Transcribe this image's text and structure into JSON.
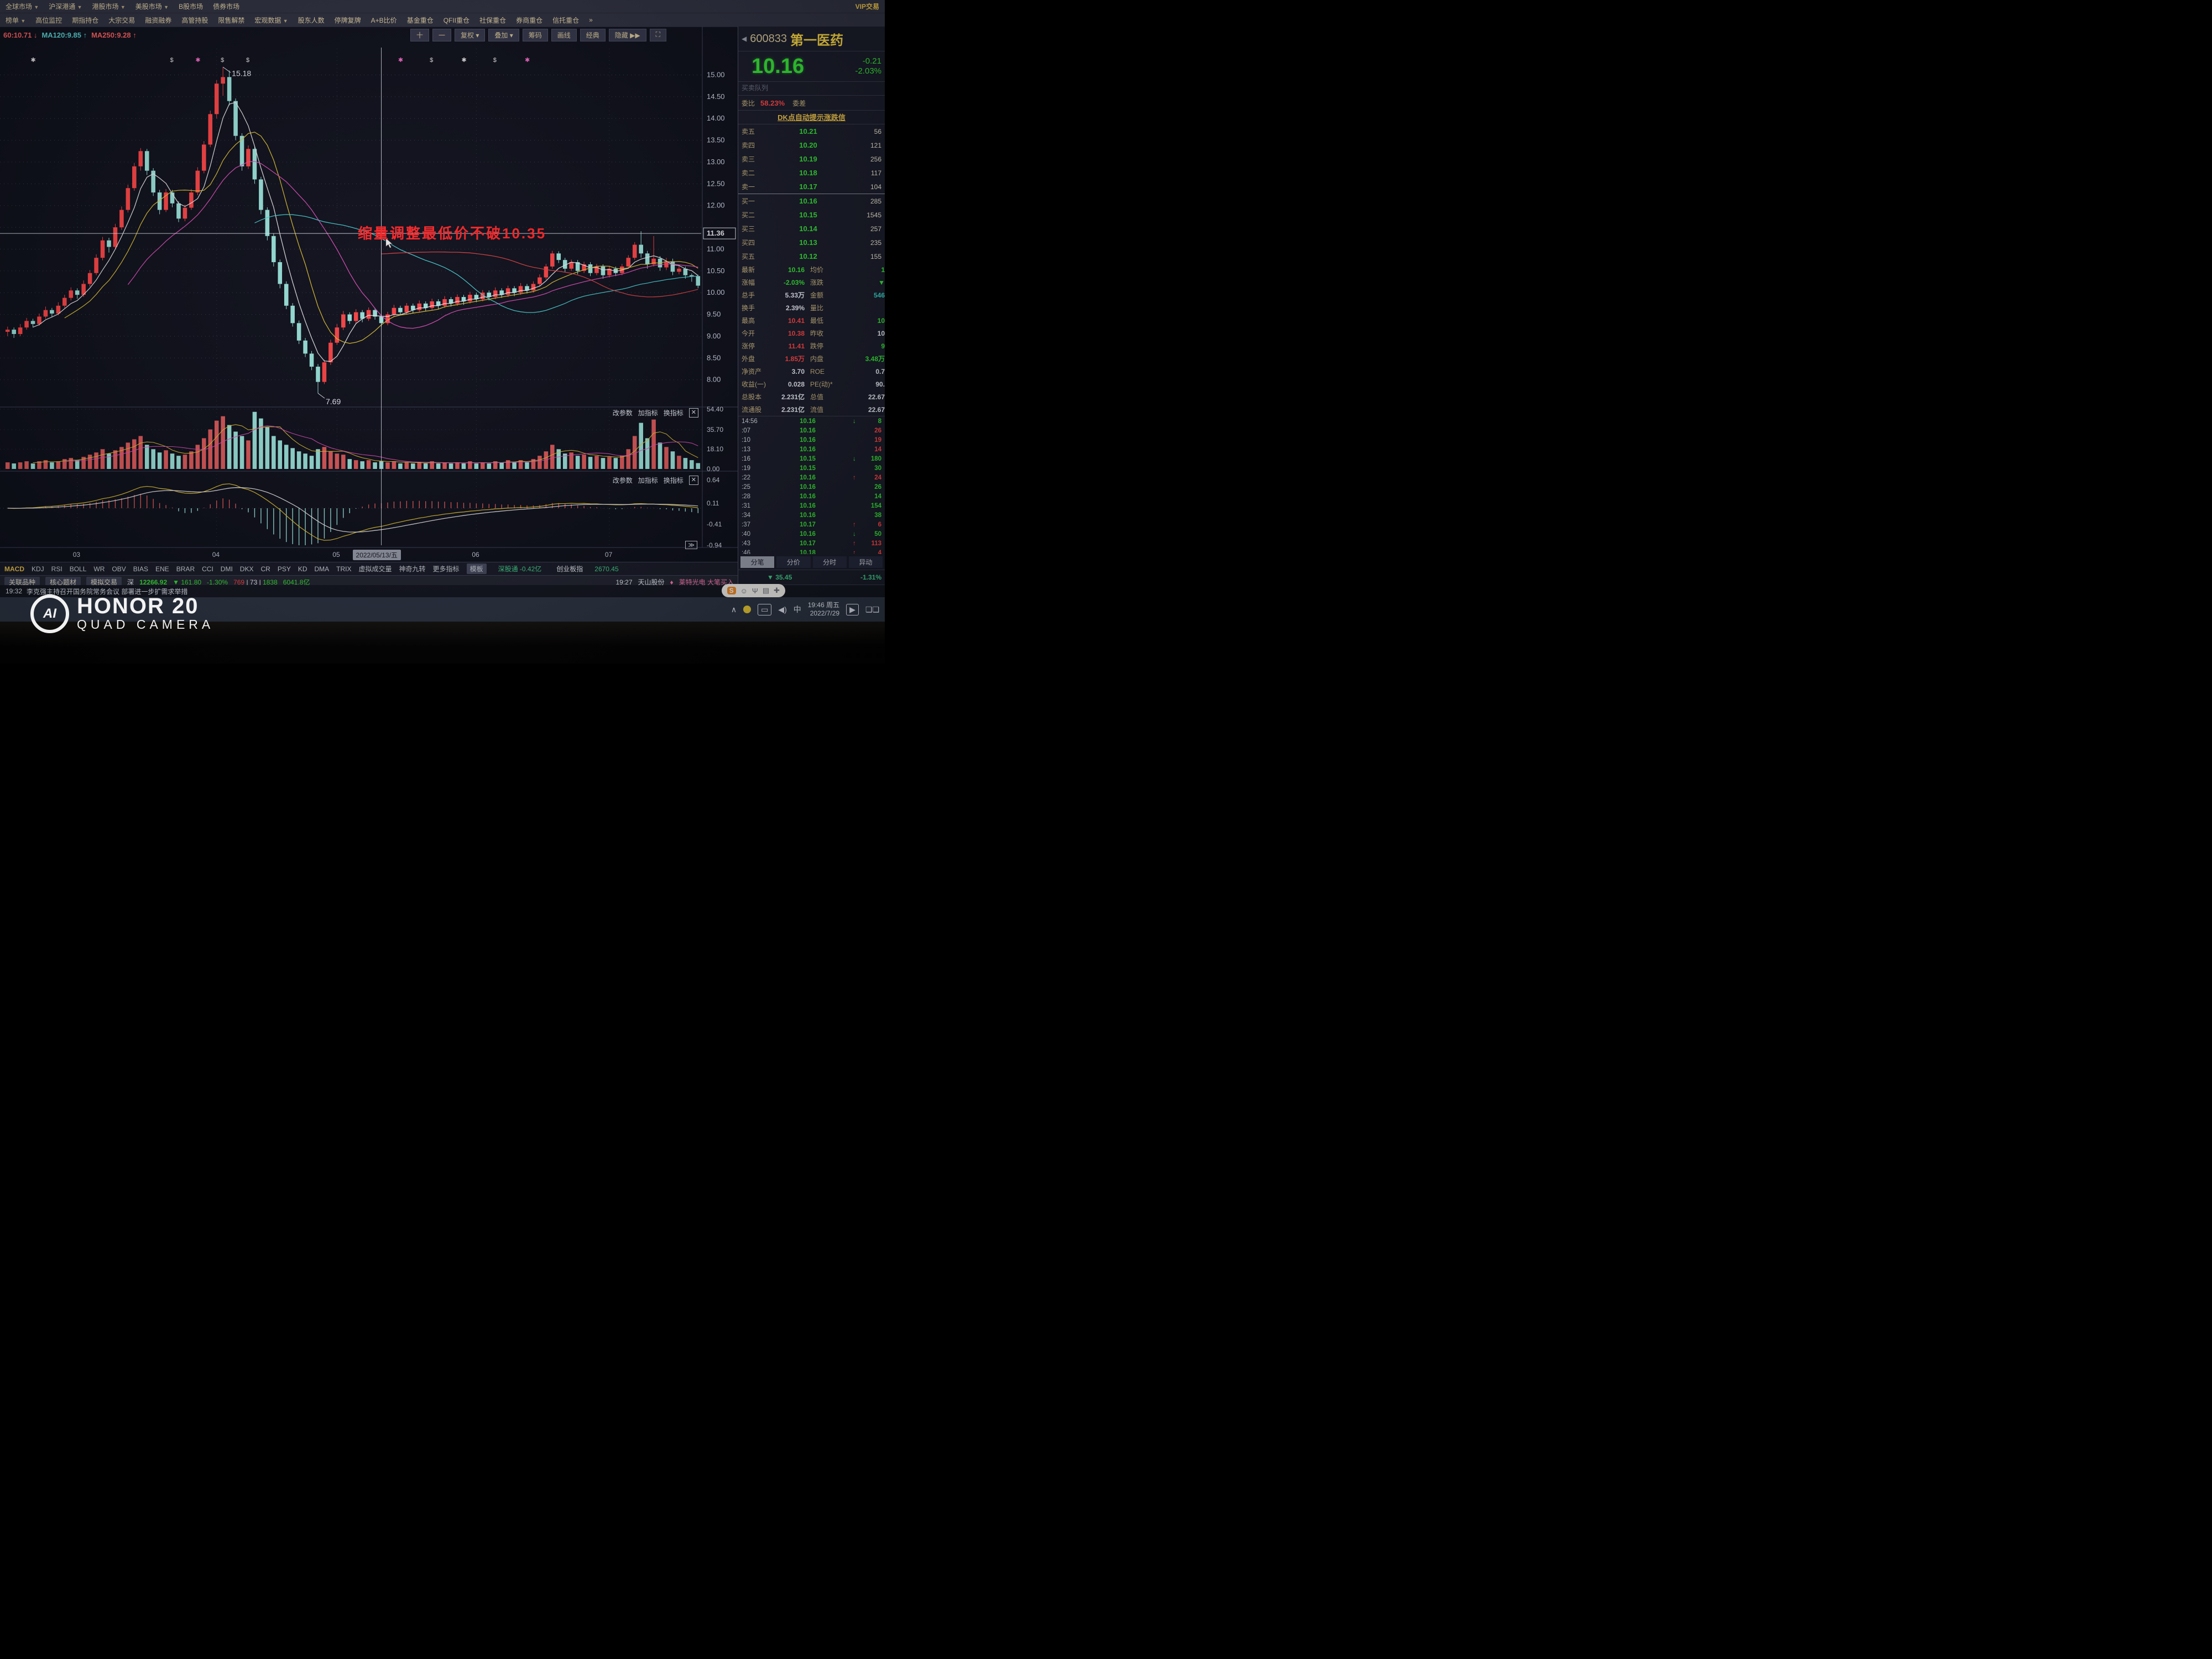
{
  "menu": {
    "row1": [
      "全球市场",
      "沪深港通",
      "港股市场",
      "美股市场",
      "B股市场",
      "债券市场"
    ],
    "row1_dropdown": [
      true,
      true,
      true,
      true,
      false,
      false
    ],
    "vip": "VIP交易",
    "row2": [
      "榜单",
      "高位监控",
      "期指持仓",
      "大宗交易",
      "融资融券",
      "高管持股",
      "限售解禁",
      "宏观数据",
      "股东人数",
      "停牌复牌",
      "A+B比价",
      "基金重仓",
      "QFII重仓",
      "社保重仓",
      "券商重仓",
      "信托重仓"
    ],
    "row2_dropdown": [
      true,
      false,
      false,
      false,
      false,
      false,
      false,
      true,
      false,
      false,
      false,
      false,
      false,
      false,
      false,
      false
    ],
    "overflow": "»"
  },
  "toolbar": {
    "buttons": [
      "十",
      "一",
      "复权 ▾",
      "叠加 ▾",
      "筹码",
      "画线",
      "经典",
      "隐藏 ▶▶",
      "⛶"
    ]
  },
  "quote": {
    "back_icon": "◀",
    "code": "600833",
    "name": "第一医药",
    "price": "10.16",
    "chg": "-0.21",
    "pct": "-2.03%",
    "subtab": "买卖队列",
    "weibi_label": "委比",
    "weibi": "58.23%",
    "weicha_label": "委差",
    "dk_banner": "DK点自动提示涨跌信",
    "sells": [
      [
        "卖五",
        "10.21",
        "56"
      ],
      [
        "卖四",
        "10.20",
        "121"
      ],
      [
        "卖三",
        "10.19",
        "256"
      ],
      [
        "卖二",
        "10.18",
        "117"
      ],
      [
        "卖一",
        "10.17",
        "104"
      ]
    ],
    "buys": [
      [
        "买一",
        "10.16",
        "285"
      ],
      [
        "买二",
        "10.15",
        "1545"
      ],
      [
        "买三",
        "10.14",
        "257"
      ],
      [
        "买四",
        "10.13",
        "235"
      ],
      [
        "买五",
        "10.12",
        "155"
      ]
    ],
    "stats": [
      [
        "最新",
        "10.16",
        "g",
        "均价",
        "1",
        "g"
      ],
      [
        "涨幅",
        "-2.03%",
        "g",
        "涨跌",
        "▼",
        "g"
      ],
      [
        "总手",
        "5.33万",
        "w",
        "金额",
        "546",
        "c"
      ],
      [
        "换手",
        "2.39%",
        "w",
        "量比",
        "",
        "w"
      ],
      [
        "最高",
        "10.41",
        "r",
        "最低",
        "10",
        "g"
      ],
      [
        "今开",
        "10.38",
        "r",
        "昨收",
        "10",
        "w"
      ],
      [
        "涨停",
        "11.41",
        "r",
        "跌停",
        "9",
        "g"
      ],
      [
        "外盘",
        "1.85万",
        "r",
        "内盘",
        "3.48万",
        "g"
      ],
      [
        "净资产",
        "3.70",
        "w",
        "ROE",
        "0.7",
        "w"
      ],
      [
        "收益(一)",
        "0.028",
        "w",
        "PE(动)*",
        "90.",
        "w"
      ],
      [
        "总股本",
        "2.231亿",
        "w",
        "总值",
        "22.67",
        "w"
      ],
      [
        "流通股",
        "2.231亿",
        "w",
        "流值",
        "22.67",
        "w"
      ]
    ],
    "ticks": [
      [
        "14:56",
        "10.16",
        "↓",
        "8",
        "g"
      ],
      [
        ":07",
        "10.16",
        "",
        "26",
        "r"
      ],
      [
        ":10",
        "10.16",
        "",
        "19",
        "r"
      ],
      [
        ":13",
        "10.16",
        "",
        "14",
        "r"
      ],
      [
        ":16",
        "10.15",
        "↓",
        "180",
        "g"
      ],
      [
        ":19",
        "10.15",
        "",
        "30",
        "g"
      ],
      [
        ":22",
        "10.16",
        "↑",
        "24",
        "r"
      ],
      [
        ":25",
        "10.16",
        "",
        "26",
        "g"
      ],
      [
        ":28",
        "10.16",
        "",
        "14",
        "g"
      ],
      [
        ":31",
        "10.16",
        "",
        "154",
        "g"
      ],
      [
        ":34",
        "10.16",
        "",
        "38",
        "g"
      ],
      [
        ":37",
        "10.17",
        "↑",
        "6",
        "r"
      ],
      [
        ":40",
        "10.16",
        "↓",
        "50",
        "g"
      ],
      [
        ":43",
        "10.17",
        "↑",
        "113",
        "r"
      ],
      [
        ":46",
        "10.18",
        "↑",
        "4",
        "r"
      ],
      [
        ":49",
        "10.17",
        "↓",
        "14",
        "g"
      ],
      [
        ":52",
        "10.17",
        "",
        "3",
        "g"
      ],
      [
        ":55",
        "10.15",
        "↓",
        "139",
        "g"
      ],
      [
        "15:00",
        "10.16",
        "↑",
        "654",
        "g"
      ]
    ],
    "tabs": [
      "分笔",
      "分价",
      "分时",
      "异动"
    ],
    "index_row": {
      "chg": "▼ 35.45",
      "pct": "-1.31%"
    },
    "clock": "7/29 19:46:08"
  },
  "pane_controls": [
    "改参数",
    "加指标",
    "换指标"
  ],
  "close_icon": "✕",
  "more_icon": "≫",
  "chart_data": {
    "type": "candlestick",
    "title": "600833 第一医药 日K",
    "ylim": [
      7.45,
      15.45
    ],
    "y_ticks": [
      "15.00",
      "14.50",
      "14.00",
      "13.50",
      "13.00",
      "12.50",
      "12.00",
      "11.00",
      "10.50",
      "10.00",
      "9.50",
      "9.00",
      "8.50",
      "8.00"
    ],
    "vol_ylim": [
      0,
      54.4
    ],
    "vol_ticks": [
      [
        "54.40",
        54.4
      ],
      [
        "35.70",
        35.7
      ],
      [
        "18.10",
        18.1
      ],
      [
        "0.00",
        0
      ]
    ],
    "macd_ticks": [
      [
        "0.64",
        0.64
      ],
      [
        "0.11",
        0.11
      ],
      [
        "-0.41",
        -0.41
      ],
      [
        "-0.94",
        -0.94
      ]
    ],
    "ma_overlay": [
      {
        "text": "60:10.71",
        "arrow": "↓",
        "color": "#ff6060"
      },
      {
        "text": "MA120:9.85",
        "arrow": "↑",
        "color": "#5ad8d8"
      },
      {
        "text": "MA250:9.28",
        "arrow": "↑",
        "color": "#ff6060"
      }
    ],
    "months": [
      {
        "label": "03",
        "bar": 11
      },
      {
        "label": "04",
        "bar": 33
      },
      {
        "label": "05",
        "bar": 52
      },
      {
        "label": "06",
        "bar": 74
      },
      {
        "label": "07",
        "bar": 95
      }
    ],
    "annotations": {
      "peak": {
        "bar": 34,
        "price": 15.18,
        "label": "15.18"
      },
      "trough": {
        "bar": 49,
        "price": 7.69,
        "label": "7.69"
      },
      "note": {
        "text": "缩量调整最低价不破10.35",
        "bar": 71,
        "price": 11.25
      },
      "crosshair": {
        "bar": 59,
        "price": 11.36,
        "price_label": "11.36",
        "date_label": "2022/05/13/五"
      }
    },
    "markers": [
      {
        "bar": 4,
        "glyph": "✱",
        "color": "#e8e8e8"
      },
      {
        "bar": 26,
        "glyph": "$",
        "color": "#e8e8e8"
      },
      {
        "bar": 30,
        "glyph": "✱",
        "color": "#ff70d0"
      },
      {
        "bar": 34,
        "glyph": "$",
        "color": "#e8e8e8"
      },
      {
        "bar": 38,
        "glyph": "$",
        "color": "#e8e8e8"
      },
      {
        "bar": 62,
        "glyph": "✱",
        "color": "#ff70d0"
      },
      {
        "bar": 67,
        "glyph": "$",
        "color": "#e8e8e8"
      },
      {
        "bar": 72,
        "glyph": "✱",
        "color": "#e8e8e8"
      },
      {
        "bar": 77,
        "glyph": "$",
        "color": "#e8e8e8"
      },
      {
        "bar": 82,
        "glyph": "✱",
        "color": "#ff70d0"
      }
    ],
    "candles": [
      [
        9.1,
        9.22,
        9.0,
        9.15
      ],
      [
        9.15,
        9.2,
        8.96,
        9.05
      ],
      [
        9.05,
        9.28,
        9.0,
        9.2
      ],
      [
        9.2,
        9.42,
        9.15,
        9.35
      ],
      [
        9.35,
        9.4,
        9.2,
        9.28
      ],
      [
        9.28,
        9.52,
        9.24,
        9.45
      ],
      [
        9.45,
        9.68,
        9.4,
        9.6
      ],
      [
        9.6,
        9.65,
        9.44,
        9.52
      ],
      [
        9.52,
        9.78,
        9.48,
        9.7
      ],
      [
        9.7,
        9.95,
        9.65,
        9.88
      ],
      [
        9.88,
        10.12,
        9.82,
        10.05
      ],
      [
        10.05,
        10.1,
        9.86,
        9.95
      ],
      [
        9.95,
        10.28,
        9.9,
        10.2
      ],
      [
        10.2,
        10.52,
        10.14,
        10.45
      ],
      [
        10.45,
        10.88,
        10.4,
        10.8
      ],
      [
        10.8,
        11.28,
        10.74,
        11.2
      ],
      [
        11.2,
        11.26,
        10.92,
        11.05
      ],
      [
        11.05,
        11.58,
        11.0,
        11.5
      ],
      [
        11.5,
        11.98,
        11.44,
        11.9
      ],
      [
        11.9,
        12.48,
        11.84,
        12.4
      ],
      [
        12.4,
        12.98,
        12.34,
        12.9
      ],
      [
        12.9,
        13.32,
        12.8,
        13.25
      ],
      [
        13.25,
        13.3,
        12.7,
        12.8
      ],
      [
        12.8,
        12.86,
        12.22,
        12.3
      ],
      [
        12.3,
        12.36,
        11.8,
        11.9
      ],
      [
        11.9,
        12.38,
        11.85,
        12.3
      ],
      [
        12.3,
        12.36,
        11.96,
        12.05
      ],
      [
        12.05,
        12.1,
        11.62,
        11.7
      ],
      [
        11.7,
        12.02,
        11.64,
        11.95
      ],
      [
        11.95,
        12.38,
        11.9,
        12.3
      ],
      [
        12.3,
        12.88,
        12.24,
        12.8
      ],
      [
        12.8,
        13.48,
        12.74,
        13.4
      ],
      [
        13.4,
        14.18,
        13.34,
        14.1
      ],
      [
        14.1,
        14.88,
        14.0,
        14.8
      ],
      [
        14.8,
        15.18,
        14.52,
        14.95
      ],
      [
        14.95,
        15.1,
        14.3,
        14.4
      ],
      [
        14.4,
        14.46,
        13.5,
        13.6
      ],
      [
        13.6,
        13.66,
        12.8,
        12.9
      ],
      [
        12.9,
        13.38,
        12.84,
        13.3
      ],
      [
        13.3,
        13.36,
        12.5,
        12.6
      ],
      [
        12.6,
        12.66,
        11.8,
        11.9
      ],
      [
        11.9,
        11.96,
        11.2,
        11.3
      ],
      [
        11.3,
        11.36,
        10.6,
        10.7
      ],
      [
        10.7,
        10.76,
        10.1,
        10.2
      ],
      [
        10.2,
        10.26,
        9.62,
        9.7
      ],
      [
        9.7,
        9.76,
        9.22,
        9.3
      ],
      [
        9.3,
        9.36,
        8.82,
        8.9
      ],
      [
        8.9,
        8.96,
        8.52,
        8.6
      ],
      [
        8.6,
        8.66,
        8.22,
        8.3
      ],
      [
        8.3,
        8.36,
        7.69,
        7.95
      ],
      [
        7.95,
        8.46,
        7.9,
        8.4
      ],
      [
        8.4,
        8.92,
        8.34,
        8.85
      ],
      [
        8.85,
        9.28,
        8.8,
        9.2
      ],
      [
        9.2,
        9.58,
        9.14,
        9.5
      ],
      [
        9.5,
        9.55,
        9.28,
        9.35
      ],
      [
        9.35,
        9.62,
        9.3,
        9.55
      ],
      [
        9.55,
        9.6,
        9.32,
        9.4
      ],
      [
        9.4,
        9.66,
        9.35,
        9.6
      ],
      [
        9.6,
        9.65,
        9.38,
        9.45
      ],
      [
        9.45,
        9.5,
        9.22,
        9.3
      ],
      [
        9.3,
        9.56,
        9.25,
        9.5
      ],
      [
        9.5,
        9.72,
        9.45,
        9.65
      ],
      [
        9.65,
        9.7,
        9.48,
        9.55
      ],
      [
        9.55,
        9.76,
        9.5,
        9.7
      ],
      [
        9.7,
        9.75,
        9.52,
        9.6
      ],
      [
        9.6,
        9.82,
        9.55,
        9.75
      ],
      [
        9.75,
        9.8,
        9.58,
        9.65
      ],
      [
        9.65,
        9.86,
        9.6,
        9.8
      ],
      [
        9.8,
        9.85,
        9.62,
        9.7
      ],
      [
        9.7,
        9.92,
        9.65,
        9.85
      ],
      [
        9.85,
        9.9,
        9.68,
        9.75
      ],
      [
        9.75,
        9.96,
        9.7,
        9.9
      ],
      [
        9.9,
        9.95,
        9.72,
        9.8
      ],
      [
        9.8,
        10.02,
        9.75,
        9.95
      ],
      [
        9.95,
        10.0,
        9.78,
        9.85
      ],
      [
        9.85,
        10.06,
        9.8,
        10.0
      ],
      [
        10.0,
        10.05,
        9.82,
        9.9
      ],
      [
        9.9,
        10.12,
        9.85,
        10.05
      ],
      [
        10.05,
        10.1,
        9.88,
        9.95
      ],
      [
        9.95,
        10.16,
        9.9,
        10.1
      ],
      [
        10.1,
        10.15,
        9.92,
        10.0
      ],
      [
        10.0,
        10.22,
        9.95,
        10.15
      ],
      [
        10.15,
        10.2,
        9.98,
        10.05
      ],
      [
        10.05,
        10.26,
        10.0,
        10.2
      ],
      [
        10.2,
        10.42,
        10.15,
        10.35
      ],
      [
        10.35,
        10.66,
        10.3,
        10.6
      ],
      [
        10.6,
        10.96,
        10.55,
        10.9
      ],
      [
        10.9,
        10.95,
        10.68,
        10.75
      ],
      [
        10.75,
        10.8,
        10.48,
        10.55
      ],
      [
        10.55,
        10.76,
        10.5,
        10.7
      ],
      [
        10.7,
        10.75,
        10.42,
        10.5
      ],
      [
        10.5,
        10.71,
        10.45,
        10.65
      ],
      [
        10.65,
        10.7,
        10.38,
        10.45
      ],
      [
        10.45,
        10.66,
        10.4,
        10.6
      ],
      [
        10.6,
        10.65,
        10.32,
        10.4
      ],
      [
        10.4,
        10.61,
        10.35,
        10.55
      ],
      [
        10.55,
        10.6,
        10.38,
        10.45
      ],
      [
        10.45,
        10.66,
        10.4,
        10.6
      ],
      [
        10.6,
        10.86,
        10.55,
        10.8
      ],
      [
        10.8,
        11.16,
        10.75,
        11.1
      ],
      [
        11.1,
        11.41,
        10.8,
        10.9
      ],
      [
        10.9,
        10.96,
        10.55,
        10.65
      ],
      [
        10.65,
        11.3,
        10.6,
        10.78
      ],
      [
        10.78,
        10.84,
        10.5,
        10.58
      ],
      [
        10.58,
        10.8,
        10.52,
        10.72
      ],
      [
        10.72,
        10.78,
        10.4,
        10.48
      ],
      [
        10.48,
        10.62,
        10.42,
        10.55
      ],
      [
        10.55,
        10.6,
        10.32,
        10.4
      ],
      [
        10.4,
        10.44,
        10.25,
        10.37
      ],
      [
        10.38,
        10.41,
        10.1,
        10.16
      ]
    ],
    "volumes": [
      6,
      5,
      6,
      7,
      5,
      7,
      8,
      6,
      7,
      9,
      10,
      8,
      11,
      13,
      15,
      18,
      14,
      17,
      20,
      24,
      27,
      30,
      22,
      18,
      15,
      17,
      14,
      12,
      13,
      16,
      22,
      28,
      36,
      44,
      48,
      40,
      34,
      30,
      26,
      52,
      46,
      38,
      30,
      26,
      22,
      19,
      16,
      14,
      12,
      18,
      20,
      16,
      14,
      13,
      9,
      8,
      7,
      8,
      6,
      7,
      6,
      7,
      5,
      6,
      5,
      6,
      5,
      7,
      5,
      6,
      5,
      6,
      5,
      7,
      5,
      6,
      5,
      7,
      6,
      8,
      6,
      8,
      6,
      9,
      12,
      16,
      22,
      18,
      14,
      15,
      12,
      13,
      11,
      12,
      10,
      11,
      10,
      12,
      18,
      30,
      42,
      28,
      45,
      24,
      20,
      16,
      12,
      10,
      8,
      5.33
    ]
  },
  "bottom": {
    "indicator_tabs": [
      "MACD",
      "KDJ",
      "RSI",
      "BOLL",
      "WR",
      "OBV",
      "BIAS",
      "ENE",
      "BRAR",
      "CCI",
      "DMI",
      "DKX",
      "CR",
      "PSY",
      "KD",
      "DMA",
      "TRIX",
      "虚拟成交量",
      "神奇九转",
      "更多指标",
      "模板"
    ],
    "tabs_right": {
      "szt_label": "深股通",
      "szt": "-0.42亿",
      "cyb_label": "创业板指",
      "cyb": "2670.45"
    },
    "row_tabs": [
      "关联品种",
      "核心题材",
      "模拟交易"
    ],
    "index_bar": {
      "ex": "深",
      "idx": "12266.92",
      "chg": "▼ 161.80",
      "pct": "-1.30%",
      "adv": "769",
      "flat": "73",
      "dec": "1838",
      "turnover": "6041.8亿"
    },
    "news_right": {
      "t": "19:27",
      "stock": "天山股份",
      "diamond": "♦",
      "flash": "莱特光电 大笔买入"
    },
    "left_cluster": {
      "a": "463",
      "b": "415.5亿",
      "c": "沪股通 -5.03亿"
    },
    "news1": {
      "t": "19:28",
      "text": "证监会：推进证券纠纷特别代表人诉讼常态化"
    },
    "ticker2": {
      "t": "19:32",
      "text": "李克强主持召开国务院常务会议 部署进一步扩需求举措"
    }
  },
  "taskbar": {
    "lang": "中",
    "sogou": "S",
    "clock1": "19:46 周五",
    "clock2": "2022/7/29",
    "tray_caret": "∧"
  },
  "sogou_bar": {
    "icons": [
      "☺",
      "Ψ",
      "▤",
      "✚"
    ]
  },
  "watermark": {
    "logo": "AI",
    "line1": "HONOR 20",
    "line2": "QUAD CAMERA"
  },
  "colors": {
    "up": "#ff4545",
    "down": "#9be8de",
    "accent_gold": "#f0c64a",
    "green": "#35e235",
    "red": "#ff4545"
  }
}
